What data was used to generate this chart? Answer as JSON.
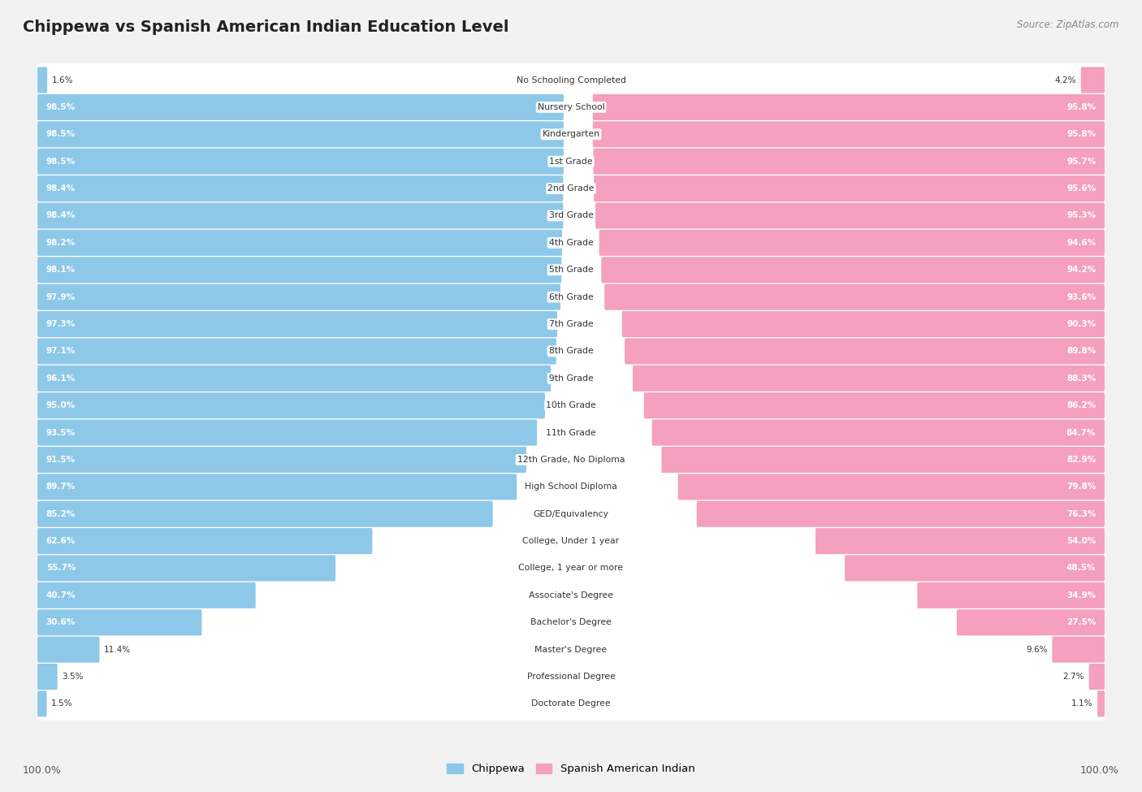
{
  "title": "Chippewa vs Spanish American Indian Education Level",
  "source": "Source: ZipAtlas.com",
  "categories": [
    "No Schooling Completed",
    "Nursery School",
    "Kindergarten",
    "1st Grade",
    "2nd Grade",
    "3rd Grade",
    "4th Grade",
    "5th Grade",
    "6th Grade",
    "7th Grade",
    "8th Grade",
    "9th Grade",
    "10th Grade",
    "11th Grade",
    "12th Grade, No Diploma",
    "High School Diploma",
    "GED/Equivalency",
    "College, Under 1 year",
    "College, 1 year or more",
    "Associate's Degree",
    "Bachelor's Degree",
    "Master's Degree",
    "Professional Degree",
    "Doctorate Degree"
  ],
  "chippewa": [
    1.6,
    98.5,
    98.5,
    98.5,
    98.4,
    98.4,
    98.2,
    98.1,
    97.9,
    97.3,
    97.1,
    96.1,
    95.0,
    93.5,
    91.5,
    89.7,
    85.2,
    62.6,
    55.7,
    40.7,
    30.6,
    11.4,
    3.5,
    1.5
  ],
  "spanish": [
    4.2,
    95.8,
    95.8,
    95.7,
    95.6,
    95.3,
    94.6,
    94.2,
    93.6,
    90.3,
    89.8,
    88.3,
    86.2,
    84.7,
    82.9,
    79.8,
    76.3,
    54.0,
    48.5,
    34.9,
    27.5,
    9.6,
    2.7,
    1.1
  ],
  "chippewa_color": "#8DC8E8",
  "spanish_color": "#F4A0BE",
  "bg_color": "#F2F2F2",
  "row_bg_color": "#FFFFFF",
  "legend_chippewa": "Chippewa",
  "legend_spanish": "Spanish American Indian",
  "left_axis_label": "100.0%",
  "right_axis_label": "100.0%",
  "value_fontsize": 7.5,
  "label_fontsize": 7.8,
  "title_fontsize": 14
}
